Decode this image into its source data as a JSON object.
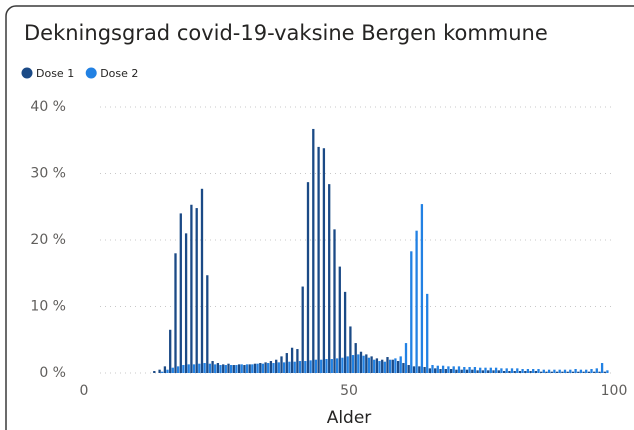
{
  "chart_data": {
    "type": "bar",
    "title": "Dekningsgrad covid-19-vaksine Bergen kommune",
    "x_label": "Alder",
    "x": [
      14,
      15,
      16,
      17,
      18,
      19,
      20,
      21,
      22,
      23,
      24,
      25,
      26,
      27,
      28,
      29,
      30,
      31,
      32,
      33,
      34,
      35,
      36,
      37,
      38,
      39,
      40,
      41,
      42,
      43,
      44,
      45,
      46,
      47,
      48,
      49,
      50,
      51,
      52,
      53,
      54,
      55,
      56,
      57,
      58,
      59,
      60,
      61,
      62,
      63,
      64,
      65,
      66,
      67,
      68,
      69,
      70,
      71,
      72,
      73,
      74,
      75,
      76,
      77,
      78,
      79,
      80,
      81,
      82,
      83,
      84,
      85,
      86,
      87,
      88,
      89,
      90,
      91,
      92,
      93,
      94,
      95,
      96,
      97,
      98,
      99
    ],
    "series": [
      {
        "name": "Dose 1",
        "color": "#1b4a86",
        "values": [
          0.3,
          0.5,
          1,
          6.5,
          18,
          24,
          21,
          25.3,
          24.8,
          27.7,
          14.7,
          1.8,
          1.5,
          1.3,
          1.4,
          1.2,
          1.3,
          1.2,
          1.3,
          1.4,
          1.5,
          1.6,
          1.8,
          2,
          2.5,
          3,
          3.8,
          3.6,
          13,
          28.7,
          36.7,
          34,
          33.8,
          28.4,
          21.6,
          16,
          12.2,
          7,
          4.5,
          3.2,
          2.8,
          2.5,
          2.2,
          2,
          2.4,
          2,
          1.8,
          1.5,
          1.2,
          1,
          1,
          0.9,
          0.7,
          0.7,
          0.6,
          0.6,
          0.6,
          0.5,
          0.5,
          0.5,
          0.5,
          0.4,
          0.4,
          0.4,
          0.4,
          0.4,
          0.3,
          0.3,
          0.3,
          0.3,
          0.3,
          0.3,
          0.3,
          0.2,
          0.2,
          0.2,
          0.2,
          0.2,
          0.2,
          0.2,
          0.2,
          0.2,
          0.2,
          0.2,
          0.2,
          0.2
        ]
      },
      {
        "name": "Dose 2",
        "color": "#2281e3",
        "values": [
          0,
          0.2,
          0.5,
          0.8,
          1,
          1.2,
          1.3,
          1.3,
          1.4,
          1.5,
          1.4,
          1.3,
          1.2,
          1.2,
          1.2,
          1.2,
          1.3,
          1.3,
          1.3,
          1.4,
          1.4,
          1.5,
          1.5,
          1.6,
          1.6,
          1.7,
          1.7,
          1.8,
          1.8,
          1.9,
          2,
          2,
          2.1,
          2.1,
          2.2,
          2.3,
          2.5,
          2.7,
          2.8,
          2.6,
          2.3,
          2,
          1.8,
          1.7,
          2,
          2.2,
          2.5,
          4.5,
          18.3,
          21.4,
          25.4,
          11.9,
          1.2,
          1.1,
          1.1,
          1,
          1,
          1,
          0.9,
          0.9,
          0.9,
          0.8,
          0.8,
          0.8,
          0.8,
          0.7,
          0.7,
          0.7,
          0.7,
          0.6,
          0.6,
          0.6,
          0.6,
          0.5,
          0.5,
          0.5,
          0.5,
          0.5,
          0.5,
          0.6,
          0.5,
          0.5,
          0.6,
          0.7,
          1.5,
          0.4
        ]
      }
    ],
    "xlim": [
      0,
      100
    ],
    "xticks": [
      0,
      50,
      100
    ],
    "ylim": [
      0,
      40
    ],
    "yticks": [
      {
        "value": 0,
        "label": "0 %"
      },
      {
        "value": 10,
        "label": "10 %"
      },
      {
        "value": 20,
        "label": "20 %"
      },
      {
        "value": 30,
        "label": "30 %"
      },
      {
        "value": 40,
        "label": "40 %"
      }
    ],
    "grid": true,
    "legend": "top-left"
  }
}
